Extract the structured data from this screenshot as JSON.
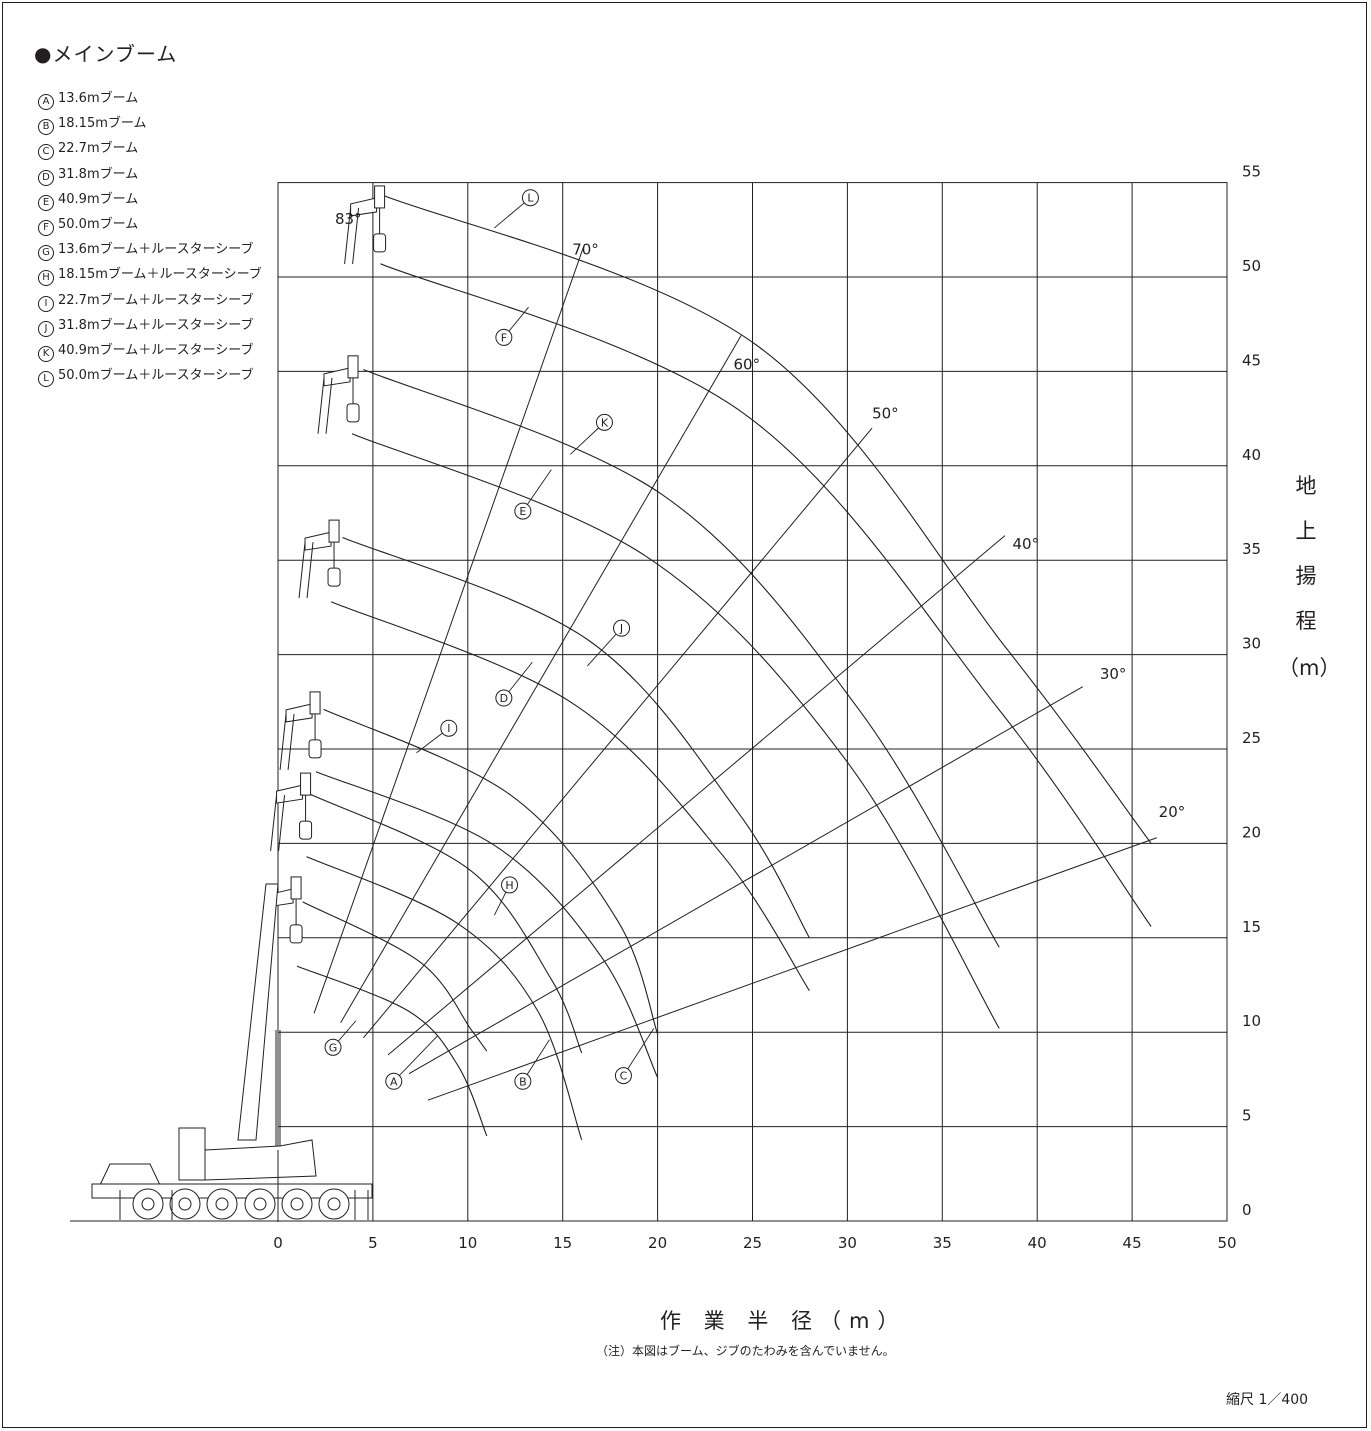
{
  "title": "●メインブーム",
  "legend": [
    {
      "mark": "A",
      "label": "13.6mブーム"
    },
    {
      "mark": "B",
      "label": "18.15mブーム"
    },
    {
      "mark": "C",
      "label": "22.7mブーム"
    },
    {
      "mark": "D",
      "label": "31.8mブーム"
    },
    {
      "mark": "E",
      "label": "40.9mブーム"
    },
    {
      "mark": "F",
      "label": "50.0mブーム"
    },
    {
      "mark": "G",
      "label": "13.6mブーム＋ルースターシーブ"
    },
    {
      "mark": "H",
      "label": "18.15mブーム＋ルースターシーブ"
    },
    {
      "mark": "I",
      "label": "22.7mブーム＋ルースターシーブ"
    },
    {
      "mark": "J",
      "label": "31.8mブーム＋ルースターシーブ"
    },
    {
      "mark": "K",
      "label": "40.9mブーム＋ルースターシーブ"
    },
    {
      "mark": "L",
      "label": "50.0mブーム＋ルースターシーブ"
    }
  ],
  "y_axis_label": [
    "地",
    "上",
    "揚",
    "程",
    "（m）"
  ],
  "x_axis_label": "作 業 半 径（m）",
  "note": "（注）本図はブーム、ジブのたわみを含んでいません。",
  "scale": "縮尺 1／400",
  "chart_data": {
    "type": "line",
    "title": "●メインブーム",
    "xlabel": "作業半径（m）",
    "ylabel": "地上揚程（m）",
    "xlim": [
      0,
      50
    ],
    "ylim": [
      0,
      55
    ],
    "grid": true,
    "x_ticks": [
      0,
      5,
      10,
      15,
      20,
      25,
      30,
      35,
      40,
      45,
      50
    ],
    "y_ticks": [
      0,
      5,
      10,
      15,
      20,
      25,
      30,
      35,
      40,
      45,
      50,
      55
    ],
    "boom_angle_labels": [
      {
        "label": "83°",
        "x": 3.0,
        "y": 52.8
      },
      {
        "label": "70°",
        "x": 15.5,
        "y": 51.2
      },
      {
        "label": "60°",
        "x": 24.0,
        "y": 45.1
      },
      {
        "label": "50°",
        "x": 31.3,
        "y": 42.5
      },
      {
        "label": "40°",
        "x": 38.7,
        "y": 35.6
      },
      {
        "label": "30°",
        "x": 43.3,
        "y": 28.7
      },
      {
        "label": "20°",
        "x": 46.4,
        "y": 21.4
      }
    ],
    "angle_rays": [
      {
        "angle": "70°",
        "from": [
          1.9,
          11.0
        ],
        "to": [
          16.1,
          51.6
        ]
      },
      {
        "angle": "60°",
        "from": [
          3.3,
          10.5
        ],
        "to": [
          24.4,
          46.9
        ]
      },
      {
        "angle": "50°",
        "from": [
          4.5,
          9.7
        ],
        "to": [
          31.3,
          42.0
        ]
      },
      {
        "angle": "40°",
        "from": [
          5.8,
          8.8
        ],
        "to": [
          38.3,
          36.3
        ]
      },
      {
        "angle": "30°",
        "from": [
          6.9,
          7.8
        ],
        "to": [
          42.4,
          28.3
        ]
      },
      {
        "angle": "20°",
        "from": [
          7.9,
          6.4
        ],
        "to": [
          46.3,
          20.3
        ]
      }
    ],
    "series": [
      {
        "name": "A",
        "label": "13.6mブーム",
        "points": [
          [
            1.0,
            13.5
          ],
          [
            6.9,
            11.1
          ],
          [
            9.5,
            8.2
          ],
          [
            11.0,
            4.5
          ]
        ]
      },
      {
        "name": "B",
        "label": "18.15mブーム",
        "points": [
          [
            1.5,
            19.3
          ],
          [
            9.4,
            15.8
          ],
          [
            13.7,
            11.1
          ],
          [
            16.0,
            4.3
          ]
        ]
      },
      {
        "name": "C",
        "label": "22.7mブーム",
        "points": [
          [
            2.0,
            23.8
          ],
          [
            11.4,
            19.9
          ],
          [
            17.1,
            13.9
          ],
          [
            20.0,
            7.6
          ]
        ]
      },
      {
        "name": "D",
        "label": "31.8mブーム",
        "points": [
          [
            2.8,
            32.8
          ],
          [
            15.4,
            27.5
          ],
          [
            23.4,
            19.4
          ],
          [
            28.0,
            12.2
          ]
        ]
      },
      {
        "name": "E",
        "label": "40.9mブーム",
        "points": [
          [
            3.9,
            41.7
          ],
          [
            19.4,
            35.2
          ],
          [
            30.0,
            24.3
          ],
          [
            38.0,
            10.2
          ]
        ]
      },
      {
        "name": "F",
        "label": "50.0mブーム",
        "points": [
          [
            5.4,
            50.7
          ],
          [
            24.5,
            42.8
          ],
          [
            37.9,
            27.2
          ],
          [
            46.0,
            15.6
          ]
        ]
      },
      {
        "name": "G",
        "label": "13.6mブーム＋ルースターシーブ",
        "points": [
          [
            1.3,
            16.9
          ],
          [
            7.5,
            13.7
          ],
          [
            10.2,
            10.1
          ],
          [
            11.0,
            9.0
          ]
        ]
      },
      {
        "name": "H",
        "label": "18.15mブーム＋ルースターシーブ",
        "points": [
          [
            1.7,
            22.6
          ],
          [
            10.1,
            18.6
          ],
          [
            14.4,
            12.8
          ],
          [
            16.0,
            8.9
          ]
        ]
      },
      {
        "name": "I",
        "label": "22.7mブーム＋ルースターシーブ",
        "points": [
          [
            2.4,
            27.1
          ],
          [
            12.2,
            22.6
          ],
          [
            17.9,
            15.9
          ],
          [
            20.0,
            9.9
          ]
        ]
      },
      {
        "name": "J",
        "label": "31.8mブーム＋ルースターシーブ",
        "points": [
          [
            3.4,
            36.2
          ],
          [
            16.3,
            30.8
          ],
          [
            24.2,
            21.7
          ],
          [
            28.0,
            15.0
          ]
        ]
      },
      {
        "name": "K",
        "label": "40.9mブーム＋ルースターシーブ",
        "points": [
          [
            4.5,
            45.1
          ],
          [
            20.2,
            38.5
          ],
          [
            30.6,
            27.1
          ],
          [
            38.0,
            14.5
          ]
        ]
      },
      {
        "name": "L",
        "label": "50.0mブーム＋ルースターシーブ",
        "points": [
          [
            5.6,
            54.3
          ],
          [
            25.2,
            46.4
          ],
          [
            38.4,
            30.3
          ],
          [
            46.0,
            20.0
          ]
        ]
      }
    ]
  }
}
